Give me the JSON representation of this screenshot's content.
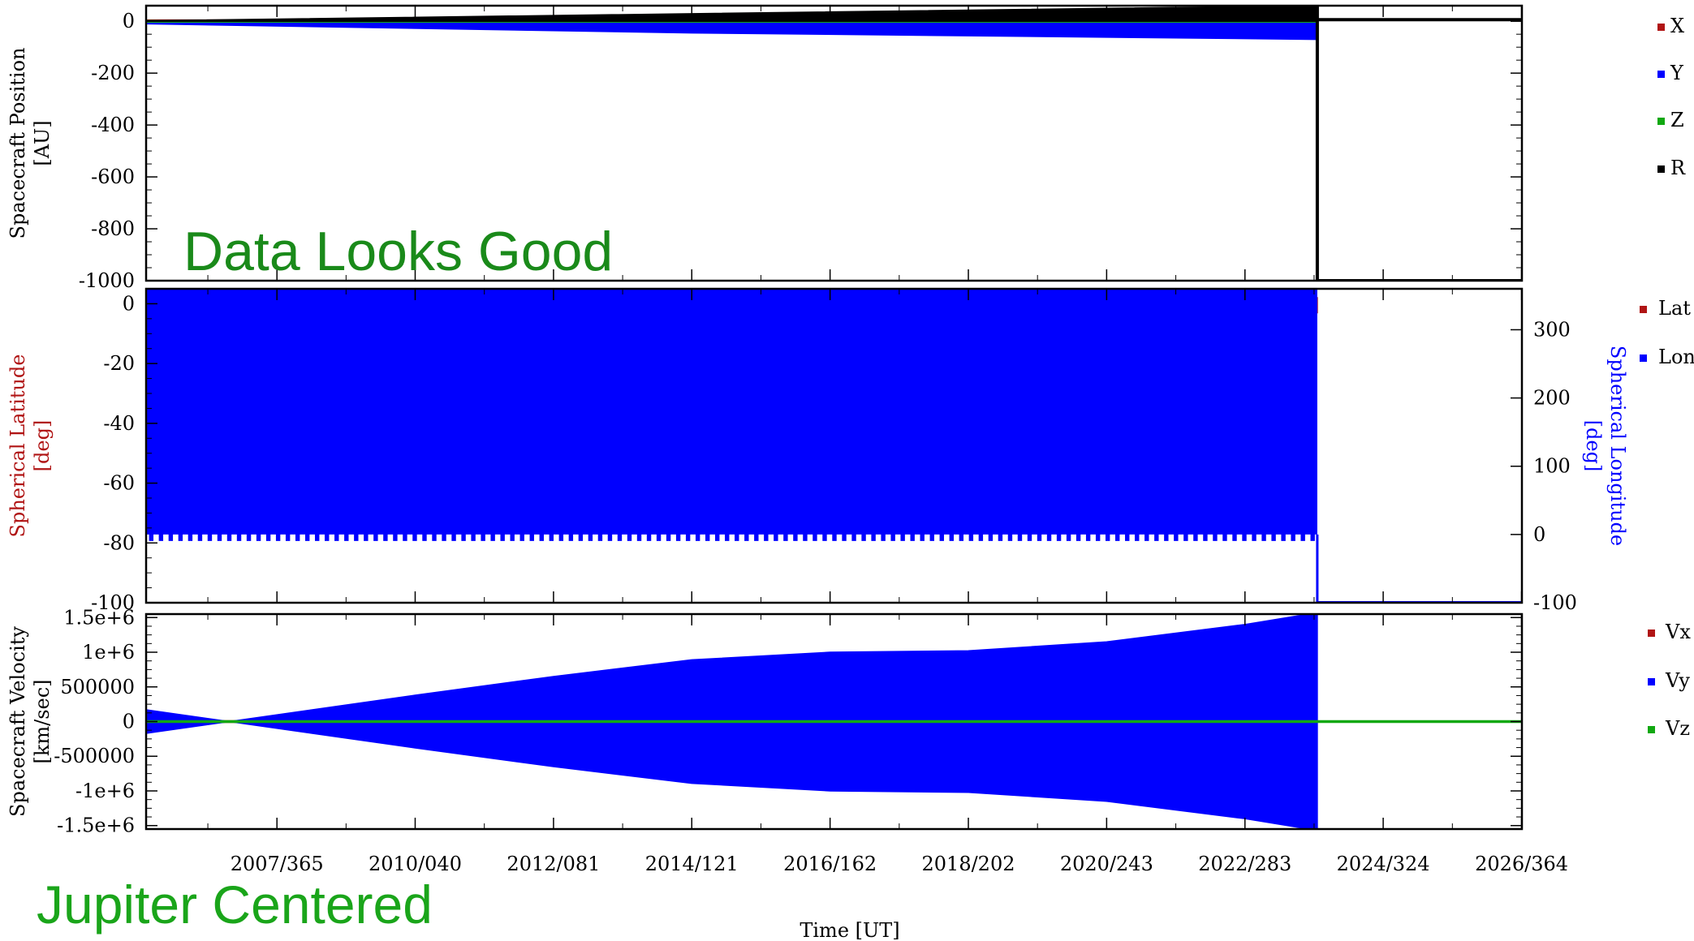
{
  "annotations": {
    "status": "Data Looks Good",
    "frame": "Jupiter Centered"
  },
  "colors": {
    "red": "#b01414",
    "blue": "#0000ff",
    "green": "#11a811",
    "black": "#000000",
    "overlay_green": "#1a8a1a"
  },
  "chart_data": {
    "x_axis": {
      "label": "Time [UT]",
      "ticks": [
        "2007/365",
        "2010/040",
        "2012/081",
        "2014/121",
        "2016/162",
        "2018/202",
        "2020/243",
        "2022/283",
        "2024/324",
        "2026/364"
      ],
      "range": [
        "2006/001",
        "2027/001"
      ],
      "data_end": "2023/321"
    },
    "panels": [
      {
        "type": "line",
        "ylabel": [
          "Spacecraft Position",
          "[AU]"
        ],
        "ylim": [
          -1000,
          60
        ],
        "yticks": [
          "0",
          "-200",
          "-400",
          "-600",
          "-800",
          "-1000"
        ],
        "series": [
          {
            "name": "X",
            "color": "#b01414",
            "values": [
              {
                "t": "2006/001",
                "min": -5,
                "max": 5
              },
              {
                "t": "2023/321",
                "min": -5,
                "max": 5
              }
            ]
          },
          {
            "name": "Y",
            "color": "#0000ff",
            "values": [
              {
                "t": "2006/001",
                "min": -10,
                "max": 2
              },
              {
                "t": "2014/121",
                "min": -45,
                "max": 5
              },
              {
                "t": "2023/321",
                "min": -70,
                "max": 60
              }
            ]
          },
          {
            "name": "Z",
            "color": "#11a811",
            "values": [
              {
                "t": "2006/001",
                "min": 0,
                "max": 0
              },
              {
                "t": "2023/321",
                "min": 0,
                "max": 0
              }
            ]
          },
          {
            "name": "R",
            "color": "#000000",
            "values": [
              {
                "t": "2006/001",
                "min": 0,
                "max": 2
              },
              {
                "t": "2023/321",
                "min": 0,
                "max": 60
              }
            ],
            "after_gap": -1000
          }
        ]
      },
      {
        "type": "line",
        "ylabel": [
          "Spherical Latitude",
          "[deg]"
        ],
        "ylabel_color": "#b01414",
        "ylim": [
          -100,
          5
        ],
        "yticks": [
          "0",
          "-20",
          "-40",
          "-60",
          "-80",
          "-100"
        ],
        "y2label": [
          "Spherical Longitude",
          "[deg]"
        ],
        "y2label_color": "#0000ff",
        "y2lim": [
          -100,
          360
        ],
        "y2ticks": [
          "300",
          "200",
          "100",
          "0",
          "-100"
        ],
        "series": [
          {
            "name": "Lat",
            "color": "#b01414",
            "values": [
              {
                "t": "2006/001",
                "min": -3,
                "max": 2
              },
              {
                "t": "2023/321",
                "min": -3,
                "max": 2
              }
            ]
          },
          {
            "name": "Lon",
            "color": "#0000ff",
            "values": [
              {
                "t": "2006/001",
                "min": 0,
                "max": 360
              },
              {
                "t": "2023/321",
                "min": 0,
                "max": 360
              }
            ],
            "after_gap": -100
          }
        ]
      },
      {
        "type": "line",
        "ylabel": [
          "Spacecraft Velocity",
          "[km/sec]"
        ],
        "ylim": [
          -1550000,
          1550000
        ],
        "yticks": [
          "1.5e+6",
          "1e+6",
          "500000",
          "0",
          "-500000",
          "-1e+6",
          "-1.5e+6"
        ],
        "series": [
          {
            "name": "Vx",
            "color": "#b01414",
            "values": [
              {
                "t": "2006/001",
                "min": 0,
                "max": 0
              },
              {
                "t": "2023/321",
                "min": 0,
                "max": 0
              }
            ]
          },
          {
            "name": "Vy",
            "color": "#0000ff",
            "values": [
              {
                "t": "2006/001",
                "min": -170000,
                "max": 170000
              },
              {
                "t": "2007/100",
                "min": 0,
                "max": 0
              },
              {
                "t": "2010/040",
                "min": -380000,
                "max": 380000
              },
              {
                "t": "2012/081",
                "min": -650000,
                "max": 650000
              },
              {
                "t": "2014/121",
                "min": -890000,
                "max": 890000
              },
              {
                "t": "2016/162",
                "min": -1000000,
                "max": 1000000
              },
              {
                "t": "2018/202",
                "min": -1020000,
                "max": 1020000
              },
              {
                "t": "2020/243",
                "min": -1150000,
                "max": 1150000
              },
              {
                "t": "2022/283",
                "min": -1400000,
                "max": 1400000
              },
              {
                "t": "2023/321",
                "min": -1570000,
                "max": 1570000
              }
            ]
          },
          {
            "name": "Vz",
            "color": "#11a811",
            "values": [
              {
                "t": "2006/001",
                "min": 0,
                "max": 0
              },
              {
                "t": "2027/001",
                "min": 0,
                "max": 0
              }
            ]
          }
        ]
      }
    ]
  }
}
